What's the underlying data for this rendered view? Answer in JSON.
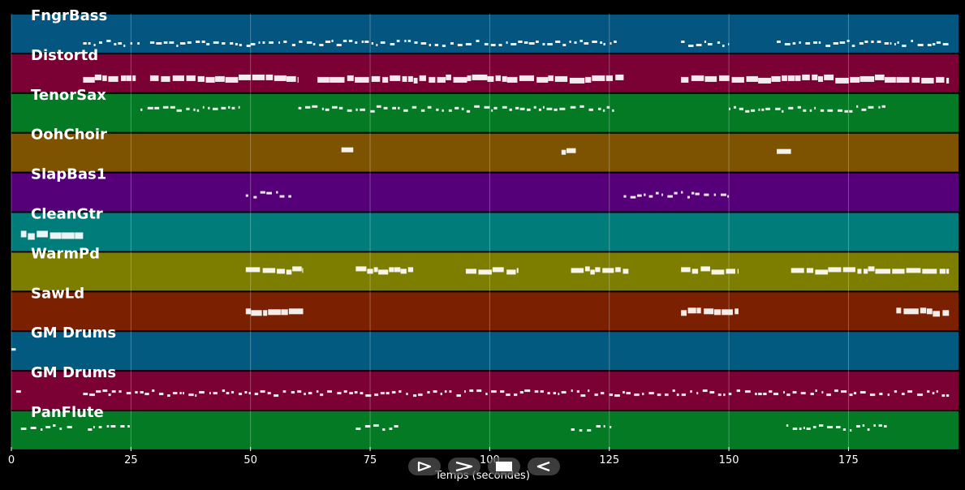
{
  "timeline": {
    "tracks": [
      {
        "label": "FngrBass",
        "color": "#04557f"
      },
      {
        "label": "Distortd",
        "color": "#7b0033"
      },
      {
        "label": "TenorSax",
        "color": "#047a25"
      },
      {
        "label": "OohChoir",
        "color": "#7d5200"
      },
      {
        "label": "SlapBas1",
        "color": "#550079"
      },
      {
        "label": "CleanGtr",
        "color": "#007d7b"
      },
      {
        "label": "WarmPd",
        "color": "#7d7d00"
      },
      {
        "label": "SawLd",
        "color": "#7b2000"
      },
      {
        "label": "GM Drums",
        "color": "#025a80"
      },
      {
        "label": "GM Drums",
        "color": "#7b0033"
      },
      {
        "label": "PanFlute",
        "color": "#047a25"
      }
    ],
    "x_ticks": [
      "0",
      "25",
      "50",
      "75",
      "100",
      "125",
      "150",
      "175"
    ],
    "x_range_seconds": [
      0,
      198
    ],
    "x_axis_title": "Temps (secondes)"
  },
  "controls": {
    "play": "play-icon",
    "fast_forward": "fast-forward-icon",
    "stop": "stop-icon",
    "rewind": "rewind-icon"
  }
}
